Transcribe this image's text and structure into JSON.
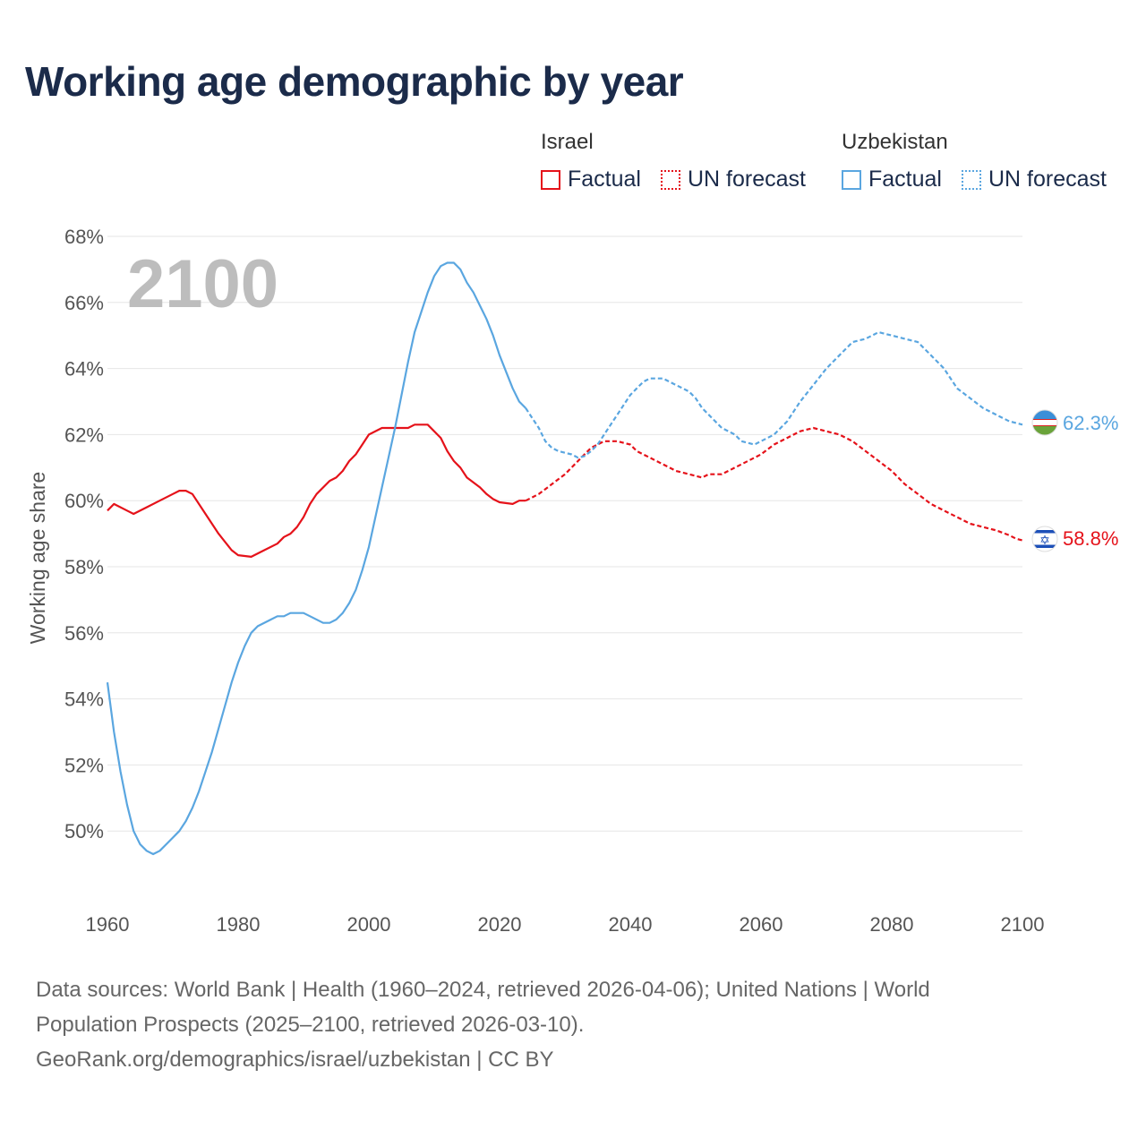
{
  "title": "Working age demographic by year",
  "year_label": "2100",
  "legend": {
    "groups": [
      {
        "name": "Israel",
        "factual": "Factual",
        "forecast": "UN forecast",
        "color": "#e5121a"
      },
      {
        "name": "Uzbekistan",
        "factual": "Factual",
        "forecast": "UN forecast",
        "color": "#5aa6e0"
      }
    ]
  },
  "end_labels": {
    "israel": "58.8%",
    "uzbekistan": "62.3%"
  },
  "footer": {
    "line1": "Data sources: World Bank | Health (1960–2024, retrieved 2026-04-06); United Nations | World",
    "line2": "Population Prospects (2025–2100, retrieved 2026-03-10).",
    "line3": "GeoRank.org/demographics/israel/uzbekistan | CC BY"
  },
  "chart_data": {
    "type": "line",
    "title": "Working age demographic by year",
    "xlabel": "",
    "ylabel": "Working age share",
    "xlim": [
      1960,
      2100
    ],
    "ylim": [
      48,
      68
    ],
    "x_ticks": [
      1960,
      1980,
      2000,
      2020,
      2040,
      2060,
      2080,
      2100
    ],
    "y_ticks": [
      "50%",
      "52%",
      "54%",
      "56%",
      "58%",
      "60%",
      "62%",
      "64%",
      "66%",
      "68%"
    ],
    "y_tick_values": [
      50,
      52,
      54,
      56,
      58,
      60,
      62,
      64,
      66,
      68
    ],
    "factual_end_year": 2024,
    "series": [
      {
        "name": "Israel",
        "color": "#e5121a",
        "points": [
          [
            1960,
            59.7
          ],
          [
            1961,
            59.9
          ],
          [
            1963,
            59.7
          ],
          [
            1964,
            59.6
          ],
          [
            1966,
            59.8
          ],
          [
            1968,
            60.0
          ],
          [
            1970,
            60.2
          ],
          [
            1971,
            60.3
          ],
          [
            1972,
            60.3
          ],
          [
            1973,
            60.2
          ],
          [
            1975,
            59.6
          ],
          [
            1977,
            59.0
          ],
          [
            1979,
            58.5
          ],
          [
            1980,
            58.35
          ],
          [
            1982,
            58.3
          ],
          [
            1984,
            58.5
          ],
          [
            1986,
            58.7
          ],
          [
            1987,
            58.9
          ],
          [
            1988,
            59.0
          ],
          [
            1989,
            59.2
          ],
          [
            1990,
            59.5
          ],
          [
            1991,
            59.9
          ],
          [
            1992,
            60.2
          ],
          [
            1994,
            60.6
          ],
          [
            1995,
            60.7
          ],
          [
            1996,
            60.9
          ],
          [
            1997,
            61.2
          ],
          [
            1998,
            61.4
          ],
          [
            1999,
            61.7
          ],
          [
            2000,
            62.0
          ],
          [
            2002,
            62.2
          ],
          [
            2004,
            62.2
          ],
          [
            2006,
            62.2
          ],
          [
            2007,
            62.3
          ],
          [
            2009,
            62.3
          ],
          [
            2011,
            61.9
          ],
          [
            2012,
            61.5
          ],
          [
            2013,
            61.2
          ],
          [
            2014,
            61.0
          ],
          [
            2015,
            60.7
          ],
          [
            2017,
            60.4
          ],
          [
            2018,
            60.2
          ],
          [
            2019,
            60.05
          ],
          [
            2020,
            59.95
          ],
          [
            2022,
            59.9
          ],
          [
            2023,
            60.0
          ],
          [
            2024,
            60.0
          ],
          [
            2025,
            60.1
          ],
          [
            2026,
            60.2
          ],
          [
            2028,
            60.5
          ],
          [
            2030,
            60.8
          ],
          [
            2032,
            61.2
          ],
          [
            2034,
            61.6
          ],
          [
            2036,
            61.8
          ],
          [
            2038,
            61.8
          ],
          [
            2040,
            61.7
          ],
          [
            2041,
            61.5
          ],
          [
            2043,
            61.3
          ],
          [
            2045,
            61.1
          ],
          [
            2047,
            60.9
          ],
          [
            2049,
            60.8
          ],
          [
            2051,
            60.7
          ],
          [
            2052,
            60.8
          ],
          [
            2054,
            60.8
          ],
          [
            2056,
            61.0
          ],
          [
            2058,
            61.2
          ],
          [
            2060,
            61.4
          ],
          [
            2062,
            61.7
          ],
          [
            2064,
            61.9
          ],
          [
            2066,
            62.1
          ],
          [
            2068,
            62.2
          ],
          [
            2070,
            62.1
          ],
          [
            2072,
            62.0
          ],
          [
            2074,
            61.8
          ],
          [
            2076,
            61.5
          ],
          [
            2078,
            61.2
          ],
          [
            2080,
            60.9
          ],
          [
            2082,
            60.5
          ],
          [
            2084,
            60.2
          ],
          [
            2086,
            59.9
          ],
          [
            2088,
            59.7
          ],
          [
            2090,
            59.5
          ],
          [
            2092,
            59.3
          ],
          [
            2094,
            59.2
          ],
          [
            2096,
            59.1
          ],
          [
            2098,
            58.95
          ],
          [
            2099,
            58.85
          ],
          [
            2100,
            58.8
          ]
        ]
      },
      {
        "name": "Uzbekistan",
        "color": "#5aa6e0",
        "points": [
          [
            1960,
            54.5
          ],
          [
            1961,
            53.0
          ],
          [
            1962,
            51.8
          ],
          [
            1963,
            50.8
          ],
          [
            1964,
            50.0
          ],
          [
            1965,
            49.6
          ],
          [
            1966,
            49.4
          ],
          [
            1967,
            49.3
          ],
          [
            1968,
            49.4
          ],
          [
            1969,
            49.6
          ],
          [
            1970,
            49.8
          ],
          [
            1971,
            50.0
          ],
          [
            1972,
            50.3
          ],
          [
            1973,
            50.7
          ],
          [
            1974,
            51.2
          ],
          [
            1975,
            51.8
          ],
          [
            1976,
            52.4
          ],
          [
            1977,
            53.1
          ],
          [
            1978,
            53.8
          ],
          [
            1979,
            54.5
          ],
          [
            1980,
            55.1
          ],
          [
            1981,
            55.6
          ],
          [
            1982,
            56.0
          ],
          [
            1983,
            56.2
          ],
          [
            1985,
            56.4
          ],
          [
            1986,
            56.5
          ],
          [
            1987,
            56.5
          ],
          [
            1988,
            56.6
          ],
          [
            1990,
            56.6
          ],
          [
            1991,
            56.5
          ],
          [
            1993,
            56.3
          ],
          [
            1994,
            56.3
          ],
          [
            1995,
            56.4
          ],
          [
            1996,
            56.6
          ],
          [
            1997,
            56.9
          ],
          [
            1998,
            57.3
          ],
          [
            1999,
            57.9
          ],
          [
            2000,
            58.6
          ],
          [
            2001,
            59.5
          ],
          [
            2002,
            60.4
          ],
          [
            2003,
            61.3
          ],
          [
            2004,
            62.2
          ],
          [
            2005,
            63.2
          ],
          [
            2006,
            64.2
          ],
          [
            2007,
            65.1
          ],
          [
            2008,
            65.7
          ],
          [
            2009,
            66.3
          ],
          [
            2010,
            66.8
          ],
          [
            2011,
            67.1
          ],
          [
            2012,
            67.2
          ],
          [
            2013,
            67.2
          ],
          [
            2014,
            67.0
          ],
          [
            2015,
            66.6
          ],
          [
            2016,
            66.3
          ],
          [
            2017,
            65.9
          ],
          [
            2018,
            65.5
          ],
          [
            2019,
            65.0
          ],
          [
            2020,
            64.4
          ],
          [
            2021,
            63.9
          ],
          [
            2022,
            63.4
          ],
          [
            2023,
            63.0
          ],
          [
            2024,
            62.8
          ],
          [
            2025,
            62.5
          ],
          [
            2026,
            62.2
          ],
          [
            2027,
            61.8
          ],
          [
            2028,
            61.6
          ],
          [
            2029,
            61.5
          ],
          [
            2031,
            61.4
          ],
          [
            2032,
            61.3
          ],
          [
            2033,
            61.35
          ],
          [
            2034,
            61.5
          ],
          [
            2035,
            61.7
          ],
          [
            2036,
            62.0
          ],
          [
            2037,
            62.3
          ],
          [
            2038,
            62.6
          ],
          [
            2039,
            62.9
          ],
          [
            2040,
            63.2
          ],
          [
            2041,
            63.4
          ],
          [
            2042,
            63.6
          ],
          [
            2043,
            63.7
          ],
          [
            2045,
            63.7
          ],
          [
            2046,
            63.6
          ],
          [
            2048,
            63.4
          ],
          [
            2049,
            63.3
          ],
          [
            2050,
            63.1
          ],
          [
            2051,
            62.8
          ],
          [
            2053,
            62.4
          ],
          [
            2054,
            62.2
          ],
          [
            2056,
            62.0
          ],
          [
            2057,
            61.8
          ],
          [
            2059,
            61.7
          ],
          [
            2060,
            61.8
          ],
          [
            2062,
            62.0
          ],
          [
            2064,
            62.4
          ],
          [
            2066,
            63.0
          ],
          [
            2068,
            63.5
          ],
          [
            2070,
            64.0
          ],
          [
            2072,
            64.4
          ],
          [
            2074,
            64.8
          ],
          [
            2076,
            64.9
          ],
          [
            2077,
            65.0
          ],
          [
            2078,
            65.1
          ],
          [
            2080,
            65.0
          ],
          [
            2082,
            64.9
          ],
          [
            2084,
            64.8
          ],
          [
            2086,
            64.4
          ],
          [
            2088,
            64.0
          ],
          [
            2090,
            63.4
          ],
          [
            2092,
            63.1
          ],
          [
            2094,
            62.8
          ],
          [
            2096,
            62.6
          ],
          [
            2098,
            62.4
          ],
          [
            2100,
            62.3
          ]
        ]
      }
    ]
  }
}
